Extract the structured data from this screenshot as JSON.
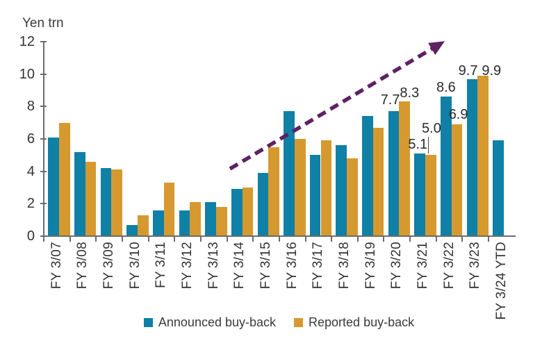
{
  "chart_data": {
    "type": "bar",
    "title": "",
    "ylabel": "Yen trn",
    "xlabel": "",
    "ylim": [
      0,
      12
    ],
    "yticks": [
      0,
      2,
      4,
      6,
      8,
      10,
      12
    ],
    "grid": false,
    "legend_position": "bottom",
    "categories": [
      "FY 3/07",
      "FY 3/08",
      "FY 3/09",
      "FY 3/10",
      "FY 3/11",
      "FY 3/12",
      "FY 3/13",
      "FY 3/14",
      "FY 3/15",
      "FY 3/16",
      "FY 3/17",
      "FY 3/18",
      "FY 3/19",
      "FY 3/20",
      "FY 3/21",
      "FY 3/22",
      "FY 3/23",
      "FY 3/24 YTD"
    ],
    "series": [
      {
        "name": "Announced buy-back",
        "color": "#0f80a6",
        "values": [
          6.1,
          5.2,
          4.2,
          0.7,
          1.6,
          1.6,
          2.1,
          2.9,
          3.9,
          7.7,
          5.0,
          5.6,
          7.4,
          7.7,
          5.1,
          8.6,
          9.7,
          5.9
        ]
      },
      {
        "name": "Reported buy-back",
        "color": "#d6992f",
        "values": [
          7.0,
          4.6,
          4.1,
          1.3,
          3.3,
          2.1,
          1.8,
          3.0,
          5.5,
          6.0,
          5.9,
          4.8,
          6.7,
          8.3,
          5.0,
          6.9,
          9.9,
          null
        ]
      }
    ],
    "bar_labels": [
      {
        "category": "FY 3/20",
        "series": "Announced buy-back",
        "text": "7.7"
      },
      {
        "category": "FY 3/20",
        "series": "Reported buy-back",
        "text": "8.3"
      },
      {
        "category": "FY 3/21",
        "series": "Announced buy-back",
        "text": "5.1"
      },
      {
        "category": "FY 3/21",
        "series": "Reported buy-back",
        "text": "5.0",
        "leader": true
      },
      {
        "category": "FY 3/22",
        "series": "Announced buy-back",
        "text": "8.6"
      },
      {
        "category": "FY 3/22",
        "series": "Reported buy-back",
        "text": "6.9"
      },
      {
        "category": "FY 3/23",
        "series": "Announced buy-back",
        "text": "9.7"
      },
      {
        "category": "FY 3/23",
        "series": "Reported buy-back",
        "text": "9.9"
      }
    ],
    "trend_arrow": {
      "description": "dashed upward trend arrow from FY 3/14 area to above FY 3/23",
      "color": "#5e2263"
    }
  }
}
